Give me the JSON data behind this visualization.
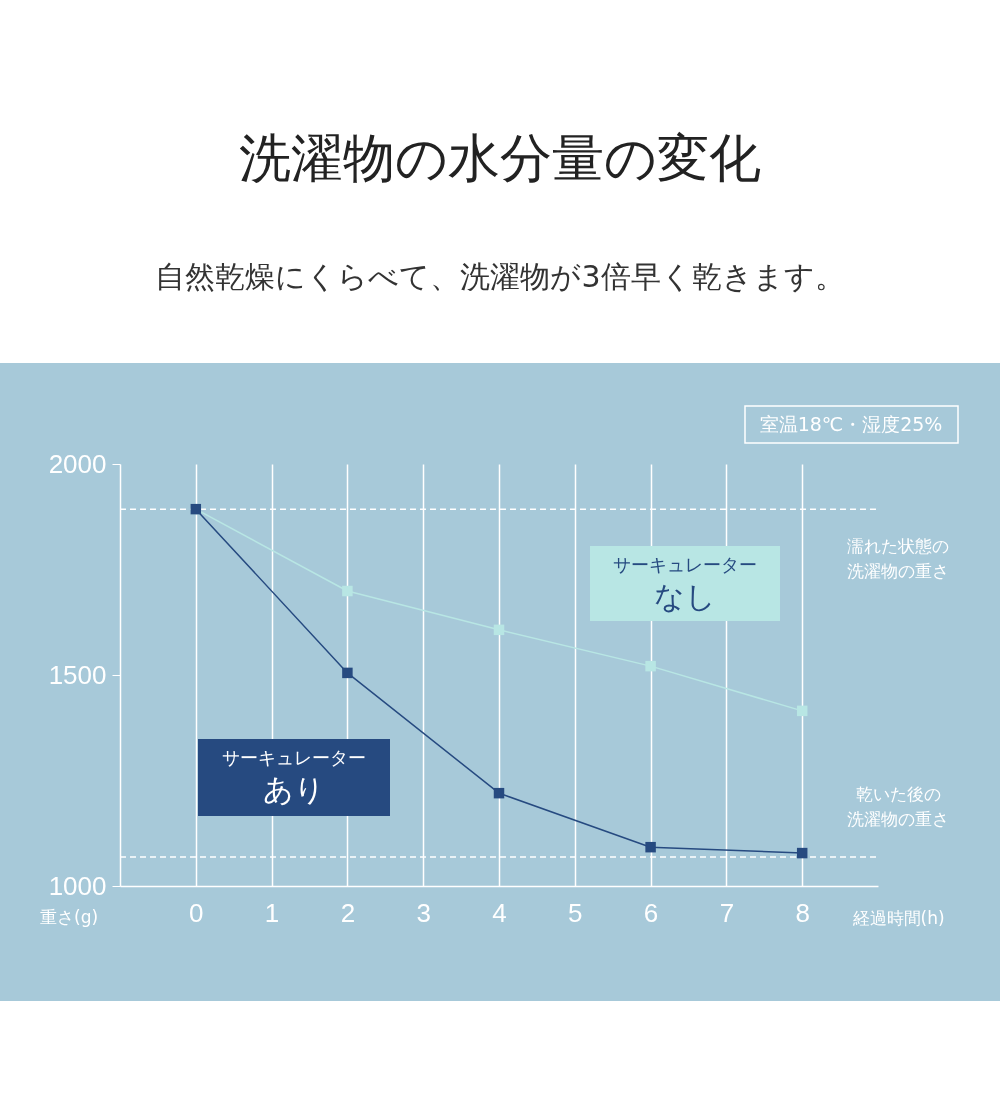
{
  "chart_data": {
    "type": "line",
    "title": "洗濯物の水分量の変化",
    "subtitle": "自然乾燥にくらべて、洗濯物が3倍早く乾きます。",
    "xlabel": "経過時間(h)",
    "ylabel": "重さ(g)",
    "x": [
      0,
      2,
      4,
      6,
      8
    ],
    "xlim": [
      -1,
      9
    ],
    "xticks": [
      0,
      1,
      2,
      3,
      4,
      5,
      6,
      7,
      8
    ],
    "ylim": [
      1000,
      2000
    ],
    "yticks": [
      1000,
      1500,
      2000
    ],
    "grid": "x",
    "marker": "square",
    "line_style": "solid",
    "series": [
      {
        "name": "サーキュレーターなし",
        "color": "#b8e6e4",
        "values": [
          1893,
          1699,
          1607,
          1521,
          1415
        ]
      },
      {
        "name": "サーキュレーターあり",
        "color": "#264a80",
        "values": [
          1893,
          1505,
          1220,
          1092,
          1078
        ]
      }
    ],
    "ref_lines": [
      {
        "axis": "y",
        "value": 1893,
        "label": "濡れた状態の洗濯物の重さ",
        "color": "#ffffff",
        "line_style": "dashed"
      },
      {
        "axis": "y",
        "value": 1069,
        "label": "乾いた後の洗濯物の重さ",
        "color": "#ffffff",
        "line_style": "dashed"
      }
    ],
    "annotations": [
      "室温18℃・湿度25%"
    ]
  }
}
